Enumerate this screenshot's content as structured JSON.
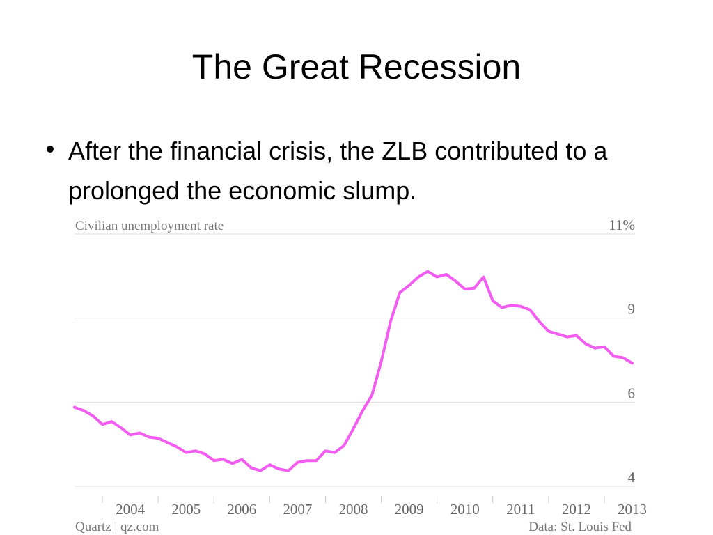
{
  "slide": {
    "title": "The Great Recession",
    "bullet": "After the financial crisis, the ZLB contributed to a prolonged the economic slump."
  },
  "chart_data": {
    "type": "line",
    "title": "Civilian unemployment rate",
    "source_left": "Quartz | qz.com",
    "source_right": "Data: St. Louis Fed",
    "xlim": [
      2003.5,
      2013.5
    ],
    "xticks": [
      2004,
      2005,
      2006,
      2007,
      2008,
      2009,
      2010,
      2011,
      2012,
      2013
    ],
    "ylim": [
      4,
      11
    ],
    "yticks": [
      4,
      6,
      9,
      {
        "value": 11,
        "label": "11%"
      }
    ],
    "grid": true,
    "series": [
      {
        "name": "Civilian unemployment rate",
        "color": "#f25cf0",
        "values": [
          5.88,
          5.8,
          5.67,
          5.47,
          5.54,
          5.39,
          5.22,
          5.27,
          5.17,
          5.14,
          5.04,
          4.94,
          4.8,
          4.84,
          4.77,
          4.61,
          4.64,
          4.54,
          4.64,
          4.44,
          4.37,
          4.51,
          4.41,
          4.37,
          4.57,
          4.61,
          4.61,
          4.84,
          4.8,
          4.97,
          5.37,
          5.8,
          6.25,
          7.44,
          8.88,
          9.61,
          9.78,
          9.98,
          10.11,
          9.98,
          10.04,
          9.88,
          9.69,
          9.71,
          9.98,
          9.41,
          9.25,
          9.31,
          9.28,
          9.2,
          8.88,
          8.53,
          8.43,
          8.33,
          8.38,
          8.08,
          7.93,
          7.98,
          7.64,
          7.59,
          7.39
        ]
      }
    ]
  }
}
